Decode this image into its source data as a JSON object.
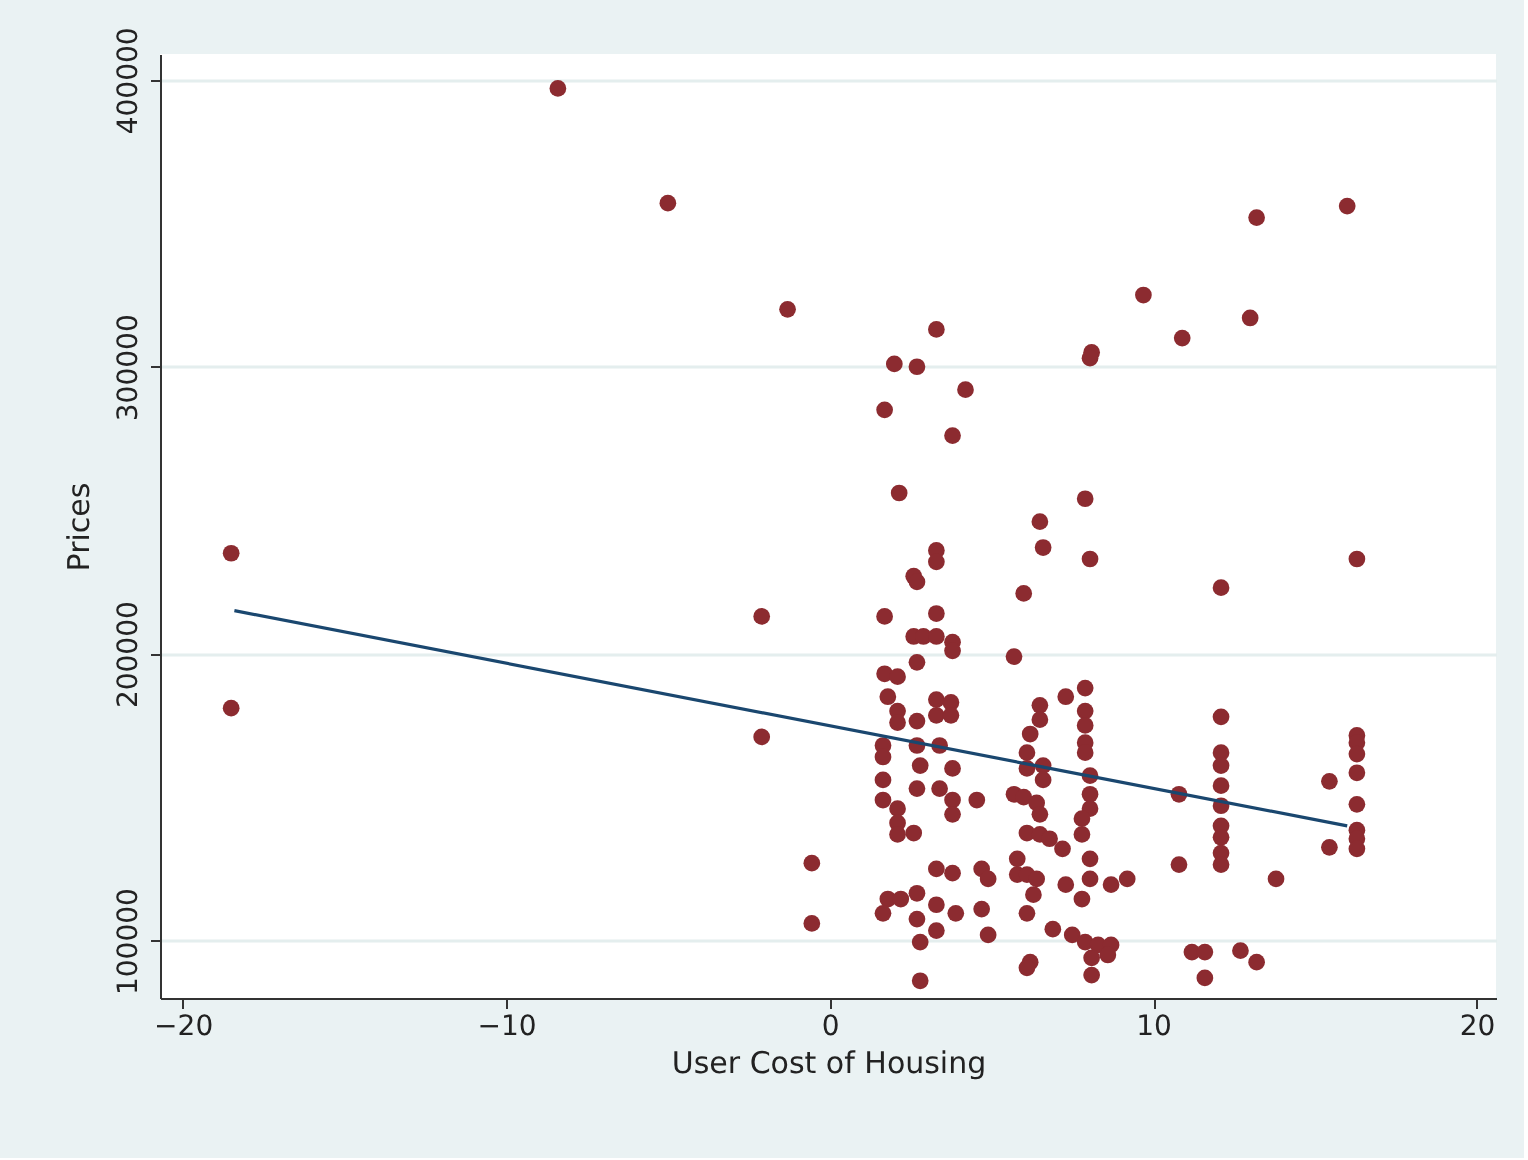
{
  "chart_data": {
    "type": "scatter",
    "xlabel": "User Cost of Housing",
    "ylabel": "Prices",
    "xlim": [
      -20.7,
      20.6
    ],
    "ylim": [
      80000,
      409000
    ],
    "xticks": [
      -20,
      -10,
      0,
      10,
      20
    ],
    "yticks": [
      100000,
      200000,
      300000,
      400000
    ],
    "grid": "y",
    "marker": "circle",
    "line_style": "solid",
    "series": [
      {
        "color": "#8c2b30",
        "x": [
          -18.5,
          -18.5,
          -8.4,
          -5.0,
          -1.3,
          -2.1,
          -2.1,
          -0.55,
          -0.55,
          3.3,
          2.0,
          2.7,
          4.2,
          1.7,
          3.8,
          2.15,
          8.1,
          8.05,
          7.9,
          6.5,
          6.6,
          8.05,
          3.3,
          3.3,
          2.6,
          2.7,
          6.0,
          1.7,
          3.3,
          2.6,
          2.9,
          3.3,
          3.8,
          3.8,
          2.7,
          5.7,
          1.7,
          2.1,
          1.8,
          2.1,
          3.3,
          3.75,
          3.3,
          3.75,
          2.1,
          2.7,
          7.3,
          7.9,
          6.5,
          6.5,
          7.9,
          7.9,
          6.2,
          7.9,
          7.9,
          1.65,
          1.65,
          2.7,
          3.4,
          2.8,
          3.8,
          6.1,
          6.1,
          6.6,
          6.6,
          8.05,
          1.65,
          2.7,
          3.4,
          3.8,
          4.55,
          5.7,
          6.0,
          1.65,
          2.1,
          3.8,
          6.4,
          6.5,
          8.05,
          8.05,
          2.1,
          2.1,
          2.6,
          6.1,
          6.5,
          6.8,
          7.2,
          7.8,
          7.8,
          8.05,
          3.3,
          3.8,
          4.7,
          4.9,
          5.8,
          5.8,
          6.1,
          6.4,
          6.3,
          7.3,
          8.05,
          8.7,
          9.2,
          1.8,
          2.2,
          1.65,
          2.7,
          3.3,
          3.9,
          4.7,
          2.7,
          3.3,
          2.8,
          6.1,
          6.9,
          4.9,
          7.8,
          7.5,
          7.9,
          8.3,
          8.7,
          8.1,
          8.6,
          8.1,
          6.2,
          6.1,
          2.8,
          16.0,
          13.2,
          9.7,
          10.9,
          13.0,
          16.3,
          12.1,
          12.1,
          12.1,
          12.1,
          12.1,
          12.1,
          12.1,
          12.1,
          12.1,
          12.1,
          10.8,
          10.8,
          13.8,
          15.45,
          15.45,
          16.3,
          16.3,
          16.3,
          16.3,
          16.3,
          16.3,
          16.3,
          16.3,
          11.2,
          11.6,
          11.6,
          12.7,
          13.2
        ],
        "values": [
          235000,
          181000,
          397000,
          357000,
          320000,
          213000,
          171000,
          127000,
          106000,
          313000,
          301000,
          300000,
          292000,
          285000,
          276000,
          256000,
          305000,
          303000,
          254000,
          246000,
          237000,
          233000,
          236000,
          232000,
          227000,
          225000,
          221000,
          213000,
          214000,
          206000,
          206000,
          206000,
          204000,
          201000,
          197000,
          199000,
          193000,
          192000,
          185000,
          180000,
          184000,
          183000,
          178500,
          178500,
          176000,
          176500,
          185000,
          188000,
          182000,
          177000,
          180000,
          175000,
          172000,
          169000,
          165500,
          168000,
          164000,
          168000,
          168000,
          161000,
          160000,
          165500,
          160000,
          161000,
          156000,
          157500,
          156000,
          153000,
          153000,
          149000,
          149000,
          151000,
          150000,
          149000,
          146000,
          144000,
          148000,
          144000,
          151000,
          146000,
          141000,
          137000,
          137500,
          137500,
          137000,
          135500,
          132000,
          142500,
          137000,
          128500,
          125000,
          123500,
          125000,
          121500,
          128500,
          123000,
          123000,
          121500,
          116000,
          119500,
          121500,
          119500,
          121500,
          114500,
          114500,
          109500,
          116500,
          112500,
          109500,
          111000,
          107500,
          103500,
          99500,
          109500,
          104000,
          102000,
          114500,
          102000,
          99500,
          98500,
          98500,
          94000,
          95000,
          88000,
          92500,
          90500,
          86000,
          356000,
          352000,
          325000,
          310000,
          317000,
          233000,
          223000,
          178000,
          165500,
          161000,
          154000,
          147000,
          140000,
          136000,
          130500,
          126500,
          151000,
          126500,
          121500,
          155500,
          132500,
          171500,
          169000,
          165000,
          158500,
          147500,
          138500,
          135500,
          132000,
          96000,
          96000,
          87000,
          96500,
          92500
        ]
      },
      {
        "type": "line",
        "color": "#1a476f",
        "marker": "none",
        "x": [
          -18.4,
          16.0
        ],
        "values": [
          215000,
          140000
        ]
      }
    ]
  }
}
